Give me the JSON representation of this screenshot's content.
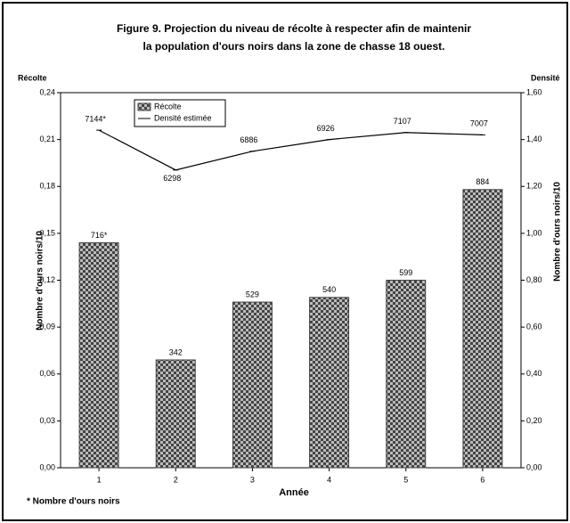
{
  "chart_data": {
    "type": "bar-line",
    "title": [
      "Figure 9. Projection du niveau de récolte à respecter afin de maintenir",
      "la population d'ours noirs dans la zone de chasse 18 ouest."
    ],
    "y_top_label": "Récolte",
    "y2_top_label": "Densité",
    "ylabel": "Nombre d'ours noirs/10",
    "y2label": "Nombre d'ours noirs/10",
    "xlabel": "Année",
    "footnote": "* Nombre d'ours noirs",
    "categories": [
      "1",
      "2",
      "3",
      "4",
      "5",
      "6"
    ],
    "series": [
      {
        "name": "Récolte",
        "kind": "bar",
        "color": "#444444",
        "values": [
          0.144,
          0.069,
          0.106,
          0.109,
          0.12,
          0.178
        ],
        "labels": [
          "716*",
          "342",
          "529",
          "540",
          "599",
          "884"
        ]
      },
      {
        "name": "Densité estimée",
        "kind": "line",
        "axis": "y2",
        "color": "#000000",
        "values": [
          1.44,
          1.27,
          1.35,
          1.4,
          1.43,
          1.42
        ],
        "labels": [
          "7144*",
          "6298",
          "6886",
          "6926",
          "7107",
          "7007"
        ]
      }
    ],
    "ylim": [
      0,
      0.24
    ],
    "yticks": [
      {
        "value": 0,
        "label": "0,00"
      },
      {
        "value": 0.03,
        "label": "0,03"
      },
      {
        "value": 0.06,
        "label": "0,06"
      },
      {
        "value": 0.09,
        "label": "0,09"
      },
      {
        "value": 0.12,
        "label": "0,12"
      },
      {
        "value": 0.15,
        "label": "0,15"
      },
      {
        "value": 0.18,
        "label": "0,18"
      },
      {
        "value": 0.21,
        "label": "0,21"
      },
      {
        "value": 0.24,
        "label": "0,24"
      }
    ],
    "y2lim": [
      0,
      1.6
    ],
    "y2ticks": [
      {
        "value": 0,
        "label": "0,00"
      },
      {
        "value": 0.2,
        "label": "0,20"
      },
      {
        "value": 0.4,
        "label": "0,40"
      },
      {
        "value": 0.6,
        "label": "0,60"
      },
      {
        "value": 0.8,
        "label": "0,80"
      },
      {
        "value": 1.0,
        "label": "1,00"
      },
      {
        "value": 1.2,
        "label": "1,20"
      },
      {
        "value": 1.4,
        "label": "1,40"
      },
      {
        "value": 1.6,
        "label": "1,60"
      }
    ],
    "legend": "upper left"
  }
}
